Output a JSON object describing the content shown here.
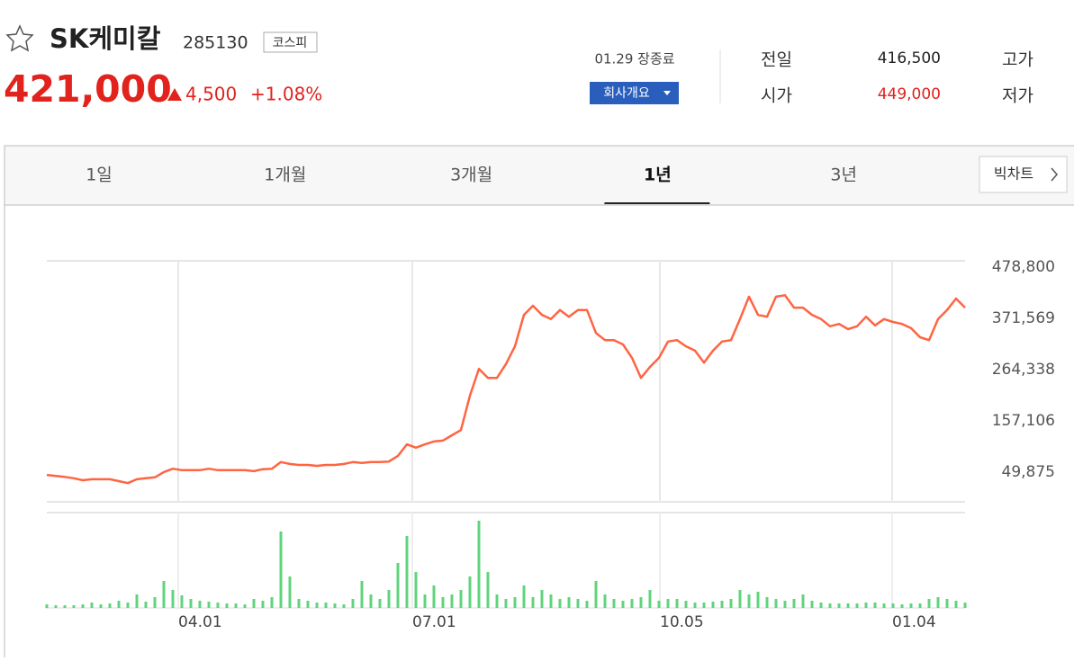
{
  "header": {
    "title": "SK케미칼",
    "code": "285130",
    "market": "코스피",
    "price": "421,000",
    "change": "4,500",
    "change_pct": "+1.08%",
    "date_label": "01.29 장종료",
    "company_button": "회사개요",
    "info": [
      [
        "전일",
        "416,500",
        "고가"
      ],
      [
        "시가",
        "449,000",
        "저가"
      ]
    ]
  },
  "tabs": [
    "1일",
    "1개월",
    "3개월",
    "1년",
    "3년"
  ],
  "active_tab": 3,
  "big_chart_button": "빅차트",
  "chart_data": {
    "type": "line",
    "color": "#ff6442",
    "volume_color": "#5fd47c",
    "xlim": [
      0,
      102
    ],
    "xticks": [
      {
        "value": 14.6,
        "label": "04.01"
      },
      {
        "value": 40.6,
        "label": "07.01"
      },
      {
        "value": 68.1,
        "label": "10.05"
      },
      {
        "value": 93.9,
        "label": "01.04"
      }
    ],
    "ylim": [
      -12200,
      492000
    ],
    "yticks": [
      {
        "value": 49875,
        "label": "49,875"
      },
      {
        "value": 157106,
        "label": "157,106"
      },
      {
        "value": 264338,
        "label": "264,338"
      },
      {
        "value": 371569,
        "label": "371,569"
      },
      {
        "value": 478800,
        "label": "478,800"
      }
    ],
    "values": [
      44000,
      42000,
      40000,
      37000,
      33000,
      35000,
      35000,
      35000,
      31000,
      27000,
      35000,
      37000,
      39000,
      50000,
      57000,
      54000,
      54000,
      54000,
      57000,
      54000,
      54000,
      54000,
      54000,
      52000,
      56000,
      57000,
      71000,
      67000,
      65000,
      65000,
      63000,
      65000,
      65000,
      67000,
      71000,
      69000,
      71000,
      71000,
      72000,
      84000,
      108000,
      101000,
      108000,
      114000,
      116000,
      127000,
      138000,
      210000,
      266000,
      247000,
      247000,
      276000,
      313000,
      379000,
      398000,
      379000,
      370000,
      389000,
      375000,
      389000,
      389000,
      341000,
      326000,
      326000,
      317000,
      289000,
      247000,
      270000,
      289000,
      323000,
      326000,
      313000,
      304000,
      279000,
      304000,
      323000,
      326000,
      370000,
      417000,
      379000,
      375000,
      417000,
      420000,
      394000,
      394000,
      379000,
      370000,
      355000,
      360000,
      349000,
      355000,
      375000,
      357000,
      370000,
      364000,
      360000,
      351000,
      332000,
      326000,
      370000,
      389000,
      413000,
      394000
    ],
    "volumes": [
      4,
      3,
      3,
      3,
      4,
      6,
      4,
      5,
      8,
      6,
      15,
      7,
      12,
      30,
      20,
      14,
      10,
      8,
      7,
      6,
      5,
      5,
      4,
      10,
      8,
      12,
      85,
      35,
      10,
      8,
      6,
      6,
      5,
      4,
      10,
      30,
      15,
      10,
      20,
      50,
      80,
      40,
      15,
      25,
      12,
      15,
      20,
      35,
      97,
      40,
      15,
      10,
      12,
      25,
      12,
      20,
      15,
      10,
      12,
      10,
      8,
      30,
      15,
      10,
      8,
      10,
      12,
      20,
      8,
      10,
      10,
      8,
      6,
      6,
      7,
      8,
      10,
      20,
      15,
      18,
      12,
      10,
      8,
      10,
      15,
      8,
      6,
      5,
      5,
      5,
      5,
      6,
      6,
      5,
      5,
      4,
      5,
      5,
      10,
      12,
      10,
      8,
      6
    ]
  }
}
